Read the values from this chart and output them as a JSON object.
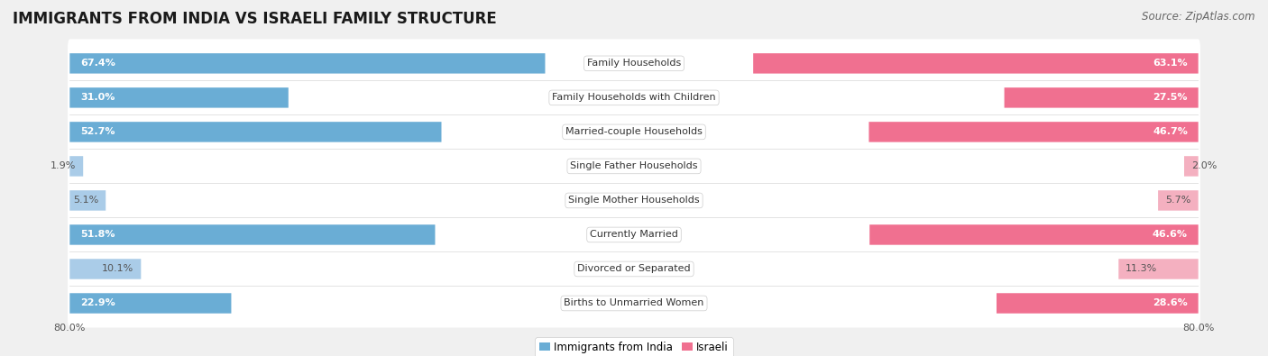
{
  "title": "IMMIGRANTS FROM INDIA VS ISRAELI FAMILY STRUCTURE",
  "source": "Source: ZipAtlas.com",
  "categories": [
    "Family Households",
    "Family Households with Children",
    "Married-couple Households",
    "Single Father Households",
    "Single Mother Households",
    "Currently Married",
    "Divorced or Separated",
    "Births to Unmarried Women"
  ],
  "india_values": [
    67.4,
    31.0,
    52.7,
    1.9,
    5.1,
    51.8,
    10.1,
    22.9
  ],
  "israeli_values": [
    63.1,
    27.5,
    46.7,
    2.0,
    5.7,
    46.6,
    11.3,
    28.6
  ],
  "india_color_strong": "#6aadd5",
  "india_color_light": "#aacce8",
  "israeli_color_strong": "#f07090",
  "israeli_color_light": "#f4b0c0",
  "label_color_white": "#ffffff",
  "label_color_dark": "#555555",
  "axis_max": 80.0,
  "background_color": "#f0f0f0",
  "row_bg_color": "#ffffff",
  "row_bg_alt": "#f8f8f8",
  "strong_threshold": 20.0,
  "title_fontsize": 12,
  "source_fontsize": 8.5,
  "value_fontsize": 8,
  "category_fontsize": 8,
  "legend_fontsize": 8.5
}
